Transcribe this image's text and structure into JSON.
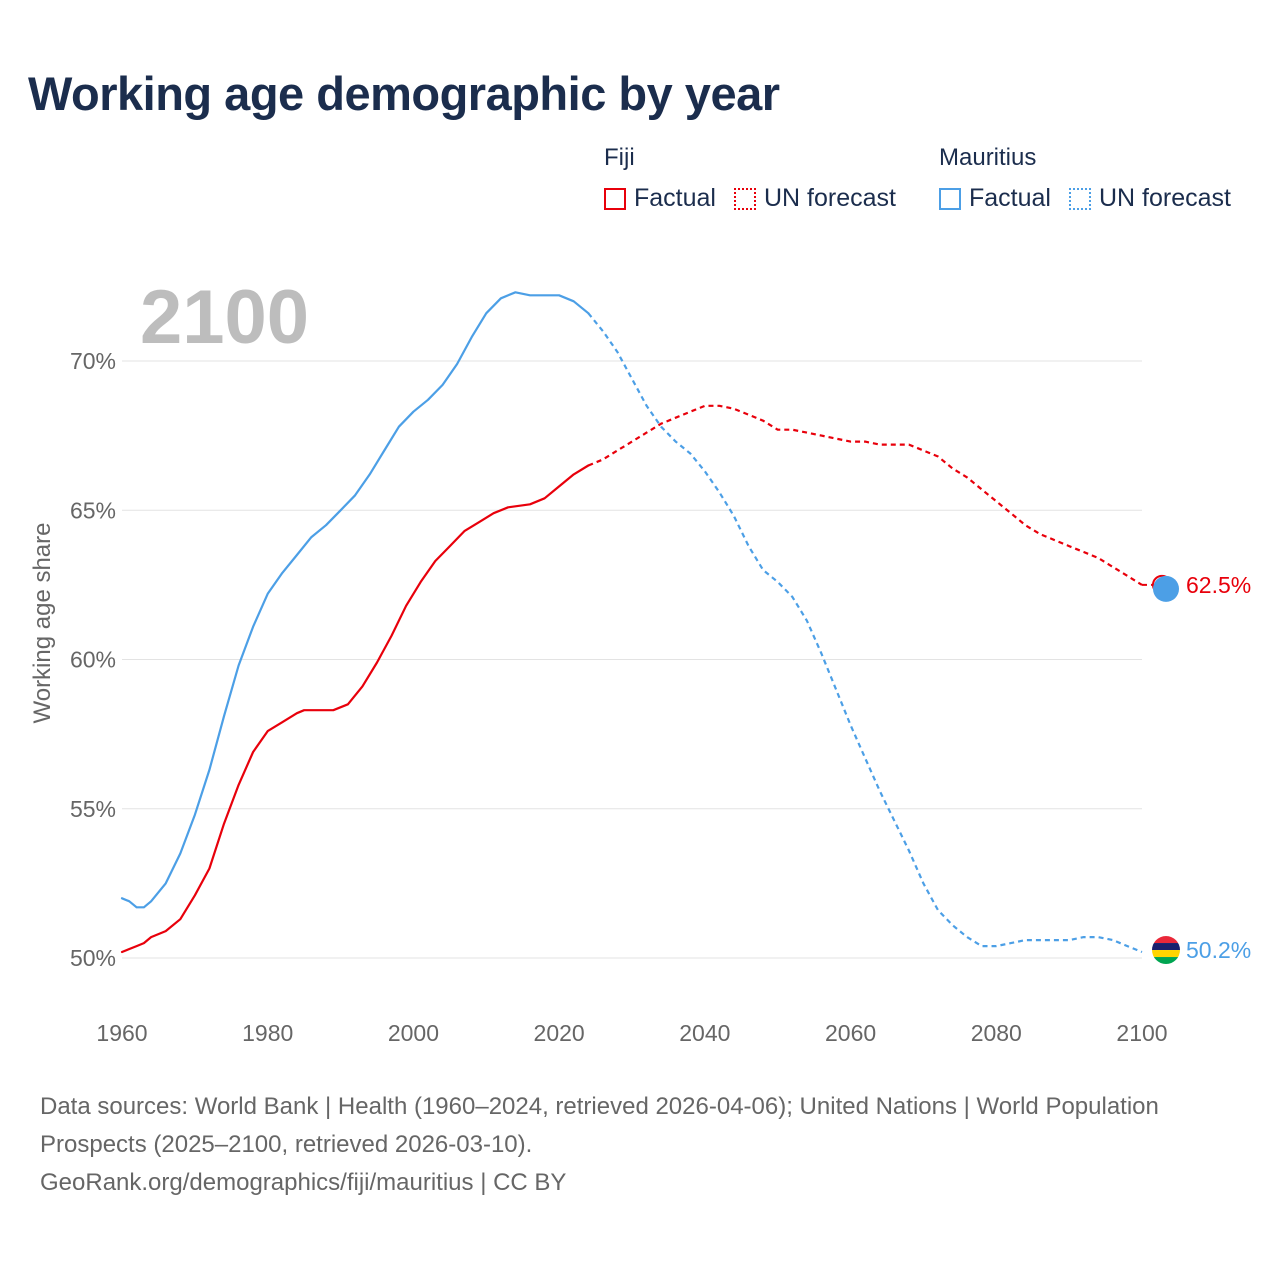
{
  "title": "Working age demographic by year",
  "legend": {
    "groups": [
      {
        "country": "Fiji",
        "factual_label": "Factual",
        "forecast_label": "UN forecast",
        "color": "#e8000b"
      },
      {
        "country": "Mauritius",
        "factual_label": "Factual",
        "forecast_label": "UN forecast",
        "color": "#4c9fe6"
      }
    ]
  },
  "footer": {
    "sources": "Data sources: World Bank | Health (1960–2024, retrieved 2026-04-06); United Nations | World Population Prospects (2025–2100, retrieved 2026-03-10).",
    "credit": "GeoRank.org/demographics/fiji/mauritius | CC BY"
  },
  "chart_data": {
    "type": "line",
    "title": "Working age demographic by year",
    "watermark_year": "2100",
    "xlabel": "",
    "ylabel": "Working age share",
    "xlim": [
      1960,
      2100
    ],
    "ylim": [
      48.5,
      72.8
    ],
    "xticks": [
      1960,
      1980,
      2000,
      2020,
      2040,
      2060,
      2080,
      2100
    ],
    "yticks": [
      50,
      55,
      60,
      65,
      70
    ],
    "ytick_labels": [
      "50%",
      "55%",
      "60%",
      "65%",
      "70%"
    ],
    "grid": true,
    "forecast_start_year": 2024,
    "series": [
      {
        "name": "Fiji",
        "color": "#e8000b",
        "end_label": "62.5%",
        "points": [
          [
            1960,
            50.2
          ],
          [
            1962,
            50.4
          ],
          [
            1963,
            50.5
          ],
          [
            1964,
            50.7
          ],
          [
            1966,
            50.9
          ],
          [
            1968,
            51.3
          ],
          [
            1970,
            52.1
          ],
          [
            1972,
            53
          ],
          [
            1974,
            54.5
          ],
          [
            1976,
            55.8
          ],
          [
            1978,
            56.9
          ],
          [
            1980,
            57.6
          ],
          [
            1982,
            57.9
          ],
          [
            1984,
            58.2
          ],
          [
            1985,
            58.3
          ],
          [
            1989,
            58.3
          ],
          [
            1991,
            58.5
          ],
          [
            1993,
            59.1
          ],
          [
            1995,
            59.9
          ],
          [
            1997,
            60.8
          ],
          [
            1999,
            61.8
          ],
          [
            2001,
            62.6
          ],
          [
            2003,
            63.3
          ],
          [
            2005,
            63.8
          ],
          [
            2007,
            64.3
          ],
          [
            2009,
            64.6
          ],
          [
            2011,
            64.9
          ],
          [
            2013,
            65.1
          ],
          [
            2016,
            65.2
          ],
          [
            2018,
            65.4
          ],
          [
            2020,
            65.8
          ],
          [
            2022,
            66.2
          ],
          [
            2024,
            66.5
          ],
          [
            2026,
            66.7
          ],
          [
            2028,
            67
          ],
          [
            2030,
            67.3
          ],
          [
            2032,
            67.6
          ],
          [
            2034,
            67.9
          ],
          [
            2036,
            68.1
          ],
          [
            2038,
            68.3
          ],
          [
            2040,
            68.5
          ],
          [
            2042,
            68.5
          ],
          [
            2044,
            68.4
          ],
          [
            2046,
            68.2
          ],
          [
            2048,
            68
          ],
          [
            2050,
            67.7
          ],
          [
            2052,
            67.7
          ],
          [
            2054,
            67.6
          ],
          [
            2056,
            67.5
          ],
          [
            2058,
            67.4
          ],
          [
            2060,
            67.3
          ],
          [
            2062,
            67.3
          ],
          [
            2064,
            67.2
          ],
          [
            2066,
            67.2
          ],
          [
            2068,
            67.2
          ],
          [
            2070,
            67
          ],
          [
            2072,
            66.8
          ],
          [
            2074,
            66.4
          ],
          [
            2076,
            66.1
          ],
          [
            2078,
            65.7
          ],
          [
            2080,
            65.3
          ],
          [
            2082,
            64.9
          ],
          [
            2084,
            64.5
          ],
          [
            2086,
            64.2
          ],
          [
            2088,
            64
          ],
          [
            2090,
            63.8
          ],
          [
            2092,
            63.6
          ],
          [
            2094,
            63.4
          ],
          [
            2096,
            63.1
          ],
          [
            2098,
            62.8
          ],
          [
            2100,
            62.5
          ]
        ]
      },
      {
        "name": "Mauritius",
        "color": "#4c9fe6",
        "end_label": "50.2%",
        "points": [
          [
            1960,
            52
          ],
          [
            1961,
            51.9
          ],
          [
            1962,
            51.7
          ],
          [
            1963,
            51.7
          ],
          [
            1964,
            51.9
          ],
          [
            1966,
            52.5
          ],
          [
            1968,
            53.5
          ],
          [
            1970,
            54.8
          ],
          [
            1972,
            56.3
          ],
          [
            1974,
            58.1
          ],
          [
            1976,
            59.8
          ],
          [
            1978,
            61.1
          ],
          [
            1980,
            62.2
          ],
          [
            1982,
            62.9
          ],
          [
            1984,
            63.5
          ],
          [
            1986,
            64.1
          ],
          [
            1988,
            64.5
          ],
          [
            1990,
            65
          ],
          [
            1992,
            65.5
          ],
          [
            1994,
            66.2
          ],
          [
            1996,
            67
          ],
          [
            1998,
            67.8
          ],
          [
            2000,
            68.3
          ],
          [
            2002,
            68.7
          ],
          [
            2004,
            69.2
          ],
          [
            2006,
            69.9
          ],
          [
            2008,
            70.8
          ],
          [
            2010,
            71.6
          ],
          [
            2012,
            72.1
          ],
          [
            2014,
            72.3
          ],
          [
            2016,
            72.2
          ],
          [
            2018,
            72.2
          ],
          [
            2020,
            72.2
          ],
          [
            2022,
            72
          ],
          [
            2024,
            71.6
          ],
          [
            2026,
            71
          ],
          [
            2028,
            70.3
          ],
          [
            2030,
            69.4
          ],
          [
            2032,
            68.5
          ],
          [
            2034,
            67.8
          ],
          [
            2036,
            67.3
          ],
          [
            2038,
            66.9
          ],
          [
            2040,
            66.3
          ],
          [
            2042,
            65.6
          ],
          [
            2044,
            64.8
          ],
          [
            2046,
            63.8
          ],
          [
            2048,
            63
          ],
          [
            2050,
            62.6
          ],
          [
            2052,
            62.1
          ],
          [
            2054,
            61.3
          ],
          [
            2056,
            60.2
          ],
          [
            2058,
            59
          ],
          [
            2060,
            57.8
          ],
          [
            2062,
            56.7
          ],
          [
            2064,
            55.6
          ],
          [
            2066,
            54.6
          ],
          [
            2068,
            53.6
          ],
          [
            2070,
            52.5
          ],
          [
            2072,
            51.6
          ],
          [
            2074,
            51.1
          ],
          [
            2076,
            50.7
          ],
          [
            2078,
            50.4
          ],
          [
            2080,
            50.4
          ],
          [
            2082,
            50.5
          ],
          [
            2084,
            50.6
          ],
          [
            2090,
            50.6
          ],
          [
            2092,
            50.7
          ],
          [
            2094,
            50.7
          ],
          [
            2096,
            50.6
          ],
          [
            2098,
            50.4
          ],
          [
            2100,
            50.2
          ]
        ]
      }
    ]
  }
}
